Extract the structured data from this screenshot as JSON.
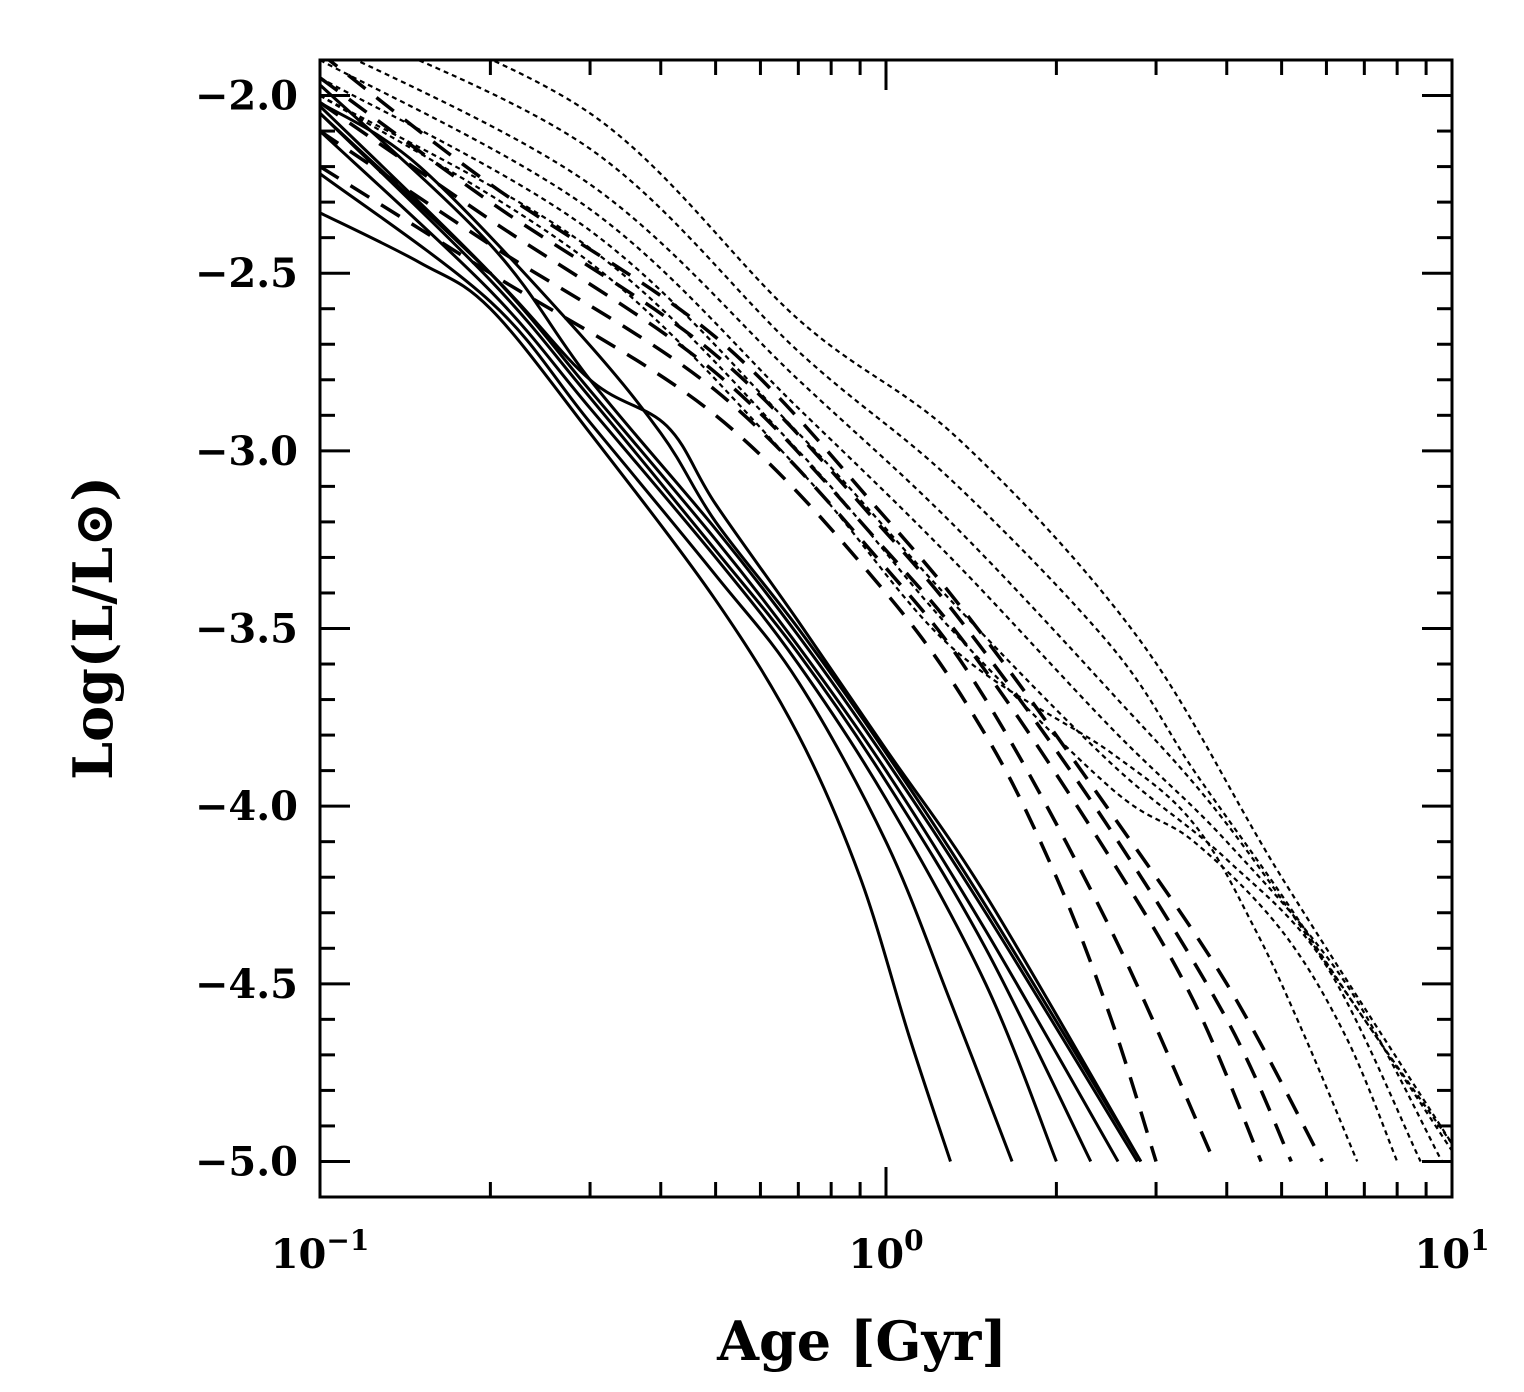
{
  "chart_data": {
    "type": "line",
    "title": "",
    "xlabel": "Age [Gyr]",
    "ylabel": "Log(L/L⊙)",
    "xscale": "log",
    "xlim": [
      0.1,
      10
    ],
    "ylim": [
      -5.1,
      -1.9
    ],
    "x_ticks": [
      {
        "base": "10",
        "exp": "−1",
        "value": 0.1
      },
      {
        "base": "10",
        "exp": "0",
        "value": 1
      },
      {
        "base": "10",
        "exp": "1",
        "value": 10
      }
    ],
    "y_ticks": [
      {
        "label": "−2.0",
        "value": -2.0
      },
      {
        "label": "−2.5",
        "value": -2.5
      },
      {
        "label": "−3.0",
        "value": -3.0
      },
      {
        "label": "−3.5",
        "value": -3.5
      },
      {
        "label": "−4.0",
        "value": -4.0
      },
      {
        "label": "−4.5",
        "value": -4.5
      },
      {
        "label": "−5.0",
        "value": -5.0
      }
    ],
    "grid": false,
    "line_color": "#000000",
    "series": [
      {
        "style": "solid",
        "points": [
          [
            0.1,
            -2.33
          ],
          [
            0.15,
            -2.47
          ],
          [
            0.2,
            -2.6
          ],
          [
            0.3,
            -2.95
          ],
          [
            0.5,
            -3.42
          ],
          [
            0.7,
            -3.8
          ],
          [
            0.9,
            -4.2
          ],
          [
            1.1,
            -4.65
          ],
          [
            1.3,
            -5.0
          ]
        ]
      },
      {
        "style": "solid",
        "points": [
          [
            0.1,
            -2.22
          ],
          [
            0.2,
            -2.58
          ],
          [
            0.3,
            -2.92
          ],
          [
            0.5,
            -3.35
          ],
          [
            0.7,
            -3.65
          ],
          [
            1.0,
            -4.1
          ],
          [
            1.3,
            -4.55
          ],
          [
            1.67,
            -5.0
          ]
        ]
      },
      {
        "style": "solid",
        "points": [
          [
            0.1,
            -2.1
          ],
          [
            0.2,
            -2.55
          ],
          [
            0.3,
            -2.88
          ],
          [
            0.5,
            -3.3
          ],
          [
            0.7,
            -3.6
          ],
          [
            1.0,
            -3.98
          ],
          [
            1.5,
            -4.5
          ],
          [
            2.0,
            -5.0
          ]
        ]
      },
      {
        "style": "solid",
        "points": [
          [
            0.1,
            -2.05
          ],
          [
            0.2,
            -2.52
          ],
          [
            0.3,
            -2.85
          ],
          [
            0.5,
            -3.28
          ],
          [
            0.7,
            -3.57
          ],
          [
            1.0,
            -3.93
          ],
          [
            1.5,
            -4.4
          ],
          [
            2.3,
            -5.0
          ]
        ]
      },
      {
        "style": "solid",
        "points": [
          [
            0.1,
            -2.03
          ],
          [
            0.2,
            -2.5
          ],
          [
            0.3,
            -2.83
          ],
          [
            0.5,
            -3.25
          ],
          [
            0.7,
            -3.55
          ],
          [
            1.0,
            -3.9
          ],
          [
            1.5,
            -4.35
          ],
          [
            2.57,
            -5.0
          ]
        ]
      },
      {
        "style": "solid",
        "points": [
          [
            0.1,
            -1.97
          ],
          [
            0.2,
            -2.42
          ],
          [
            0.3,
            -2.8
          ],
          [
            0.5,
            -3.22
          ],
          [
            0.7,
            -3.52
          ],
          [
            1.0,
            -3.87
          ],
          [
            1.5,
            -4.3
          ],
          [
            2.78,
            -5.0
          ]
        ]
      },
      {
        "style": "solid",
        "points": [
          [
            0.1,
            -2.02
          ],
          [
            0.15,
            -2.2
          ],
          [
            0.28,
            -2.65
          ],
          [
            0.4,
            -2.95
          ],
          [
            0.5,
            -3.2
          ],
          [
            0.7,
            -3.5
          ],
          [
            1.0,
            -3.85
          ],
          [
            1.5,
            -4.28
          ],
          [
            2.82,
            -5.0
          ]
        ]
      },
      {
        "style": "solid",
        "points": [
          [
            0.1,
            -2.05
          ],
          [
            0.2,
            -2.5
          ],
          [
            0.3,
            -2.8
          ],
          [
            0.41,
            -2.93
          ],
          [
            0.5,
            -3.15
          ],
          [
            0.7,
            -3.48
          ],
          [
            1.0,
            -3.84
          ],
          [
            1.5,
            -4.25
          ],
          [
            2.82,
            -5.0
          ]
        ]
      },
      {
        "style": "dashed",
        "points": [
          [
            0.1,
            -2.2
          ],
          [
            0.2,
            -2.5
          ],
          [
            0.5,
            -2.9
          ],
          [
            1.0,
            -3.4
          ],
          [
            1.5,
            -3.8
          ],
          [
            2.0,
            -4.2
          ],
          [
            2.5,
            -4.6
          ],
          [
            3.0,
            -5.0
          ]
        ]
      },
      {
        "style": "dashed",
        "points": [
          [
            0.1,
            -2.1
          ],
          [
            0.2,
            -2.42
          ],
          [
            0.5,
            -2.83
          ],
          [
            1.0,
            -3.33
          ],
          [
            1.5,
            -3.7
          ],
          [
            2.5,
            -4.35
          ],
          [
            3.8,
            -5.0
          ]
        ]
      },
      {
        "style": "dashed",
        "points": [
          [
            0.1,
            -2.02
          ],
          [
            0.2,
            -2.35
          ],
          [
            0.5,
            -2.78
          ],
          [
            1.0,
            -3.28
          ],
          [
            1.5,
            -3.62
          ],
          [
            2.5,
            -4.15
          ],
          [
            3.5,
            -4.55
          ],
          [
            4.6,
            -5.0
          ]
        ]
      },
      {
        "style": "dashed",
        "points": [
          [
            0.1,
            -1.95
          ],
          [
            0.2,
            -2.3
          ],
          [
            0.5,
            -2.73
          ],
          [
            1.0,
            -3.23
          ],
          [
            1.5,
            -3.57
          ],
          [
            2.5,
            -4.07
          ],
          [
            4.0,
            -4.6
          ],
          [
            5.2,
            -5.0
          ]
        ]
      },
      {
        "style": "dashed",
        "points": [
          [
            0.1,
            -1.88
          ],
          [
            0.2,
            -2.25
          ],
          [
            0.5,
            -2.68
          ],
          [
            1.0,
            -3.19
          ],
          [
            1.5,
            -3.53
          ],
          [
            2.5,
            -4.02
          ],
          [
            4.0,
            -4.5
          ],
          [
            5.9,
            -5.0
          ]
        ]
      },
      {
        "style": "dotted",
        "points": [
          [
            0.1,
            -1.7
          ],
          [
            0.3,
            -2.05
          ],
          [
            0.7,
            -2.63
          ],
          [
            1.35,
            -2.97
          ],
          [
            2.8,
            -3.53
          ],
          [
            5.0,
            -4.2
          ],
          [
            10,
            -4.95
          ]
        ]
      },
      {
        "style": "dotted",
        "points": [
          [
            0.1,
            -1.78
          ],
          [
            0.3,
            -2.15
          ],
          [
            0.7,
            -2.72
          ],
          [
            1.3,
            -3.08
          ],
          [
            2.5,
            -3.55
          ],
          [
            3.5,
            -3.9
          ],
          [
            5.0,
            -4.25
          ],
          [
            7.0,
            -4.6
          ],
          [
            10,
            -4.95
          ]
        ]
      },
      {
        "style": "dotted",
        "points": [
          [
            0.1,
            -1.85
          ],
          [
            0.3,
            -2.25
          ],
          [
            0.7,
            -2.8
          ],
          [
            1.3,
            -3.2
          ],
          [
            2.5,
            -3.68
          ],
          [
            4.0,
            -4.05
          ],
          [
            7.0,
            -4.6
          ],
          [
            10,
            -4.97
          ]
        ]
      },
      {
        "style": "dotted",
        "points": [
          [
            0.1,
            -1.9
          ],
          [
            0.3,
            -2.32
          ],
          [
            0.7,
            -2.88
          ],
          [
            1.3,
            -3.3
          ],
          [
            2.5,
            -3.78
          ],
          [
            4.0,
            -4.1
          ],
          [
            6.5,
            -4.5
          ],
          [
            9.6,
            -5.0
          ]
        ]
      },
      {
        "style": "dotted",
        "points": [
          [
            0.1,
            -1.95
          ],
          [
            0.3,
            -2.38
          ],
          [
            0.7,
            -2.95
          ],
          [
            1.3,
            -3.42
          ],
          [
            2.5,
            -3.88
          ],
          [
            4.0,
            -4.15
          ],
          [
            6.0,
            -4.45
          ],
          [
            8.8,
            -5.0
          ]
        ]
      },
      {
        "style": "dotted",
        "points": [
          [
            0.1,
            -2.0
          ],
          [
            0.3,
            -2.43
          ],
          [
            0.7,
            -3.0
          ],
          [
            1.3,
            -3.5
          ],
          [
            2.5,
            -3.95
          ],
          [
            3.5,
            -4.1
          ],
          [
            5.0,
            -4.35
          ],
          [
            6.5,
            -4.65
          ],
          [
            8.0,
            -5.0
          ]
        ]
      },
      {
        "style": "dotted",
        "points": [
          [
            0.1,
            -2.0
          ],
          [
            0.3,
            -2.47
          ],
          [
            0.7,
            -3.05
          ],
          [
            1.3,
            -3.55
          ],
          [
            2.5,
            -3.85
          ],
          [
            3.5,
            -4.05
          ],
          [
            4.5,
            -4.35
          ],
          [
            5.5,
            -4.65
          ],
          [
            6.8,
            -5.0
          ]
        ]
      }
    ]
  }
}
